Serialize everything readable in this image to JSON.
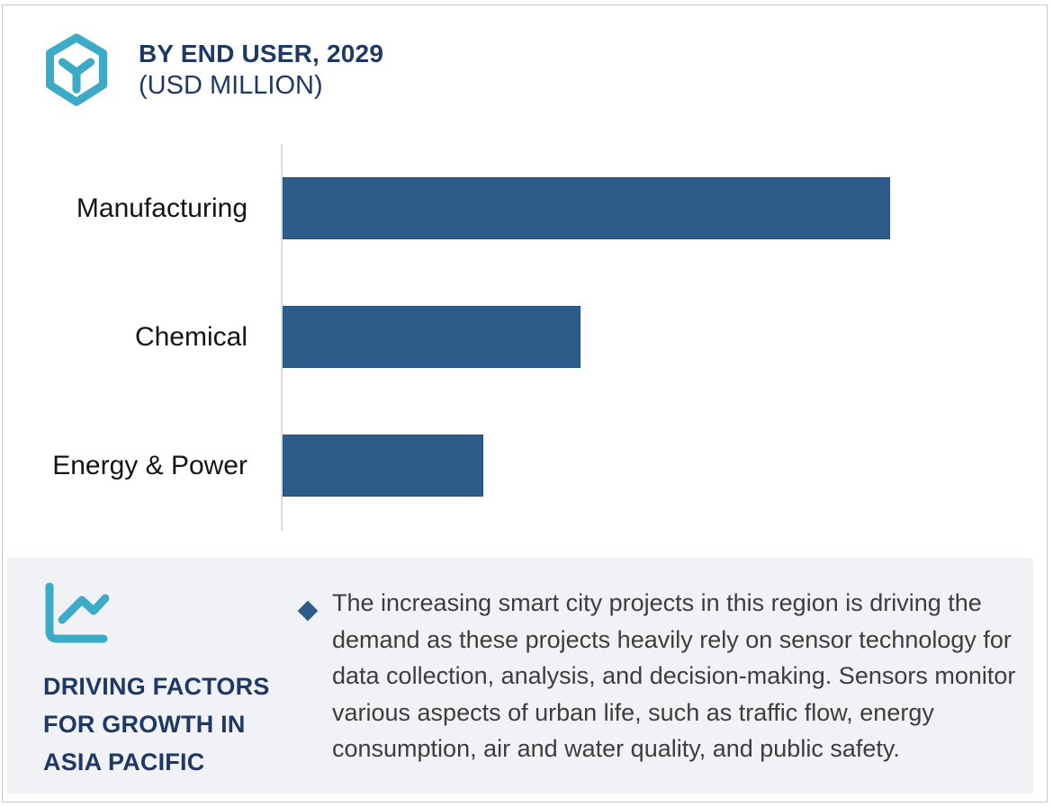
{
  "header": {
    "title_line1": "BY END USER, 2029",
    "title_line2": "(USD MILLION)",
    "logo_icon": "hexagon-cube-icon"
  },
  "chart_data": {
    "type": "bar",
    "orientation": "horizontal",
    "title": "BY END USER, 2029 (USD MILLION)",
    "categories": [
      "Manufacturing",
      "Chemical",
      "Energy & Power"
    ],
    "values": [
      100,
      49,
      33
    ],
    "xlabel": "",
    "ylabel": "",
    "xlim": [
      0,
      100
    ],
    "value_axis_labeled": false,
    "values_are_relative_percent_of_longest_bar": true,
    "grid": false,
    "legend": false,
    "bar_color": "#2d5c8a",
    "bar_border_color": "#24527f",
    "axis_line_color": "#dcdcdc"
  },
  "panel": {
    "icon": "line-chart-icon",
    "heading_lines": [
      "DRIVING FACTORS",
      "FOR GROWTH IN",
      "ASIA PACIFIC"
    ],
    "bullets": [
      {
        "marker": "diamond",
        "text": "The increasing smart city projects in this region is driving the demand as these projects heavily rely on sensor technology for data collection, analysis, and decision-making. Sensors monitor various aspects of urban life, such as traffic flow, energy consumption, air and water quality, and public safety."
      }
    ]
  },
  "colors": {
    "accent_teal": "#3babc8",
    "navy_text": "#1f3864",
    "bar_blue": "#2d5c8a",
    "panel_background": "#f0f2f6",
    "body_text": "#3d3d3d"
  }
}
